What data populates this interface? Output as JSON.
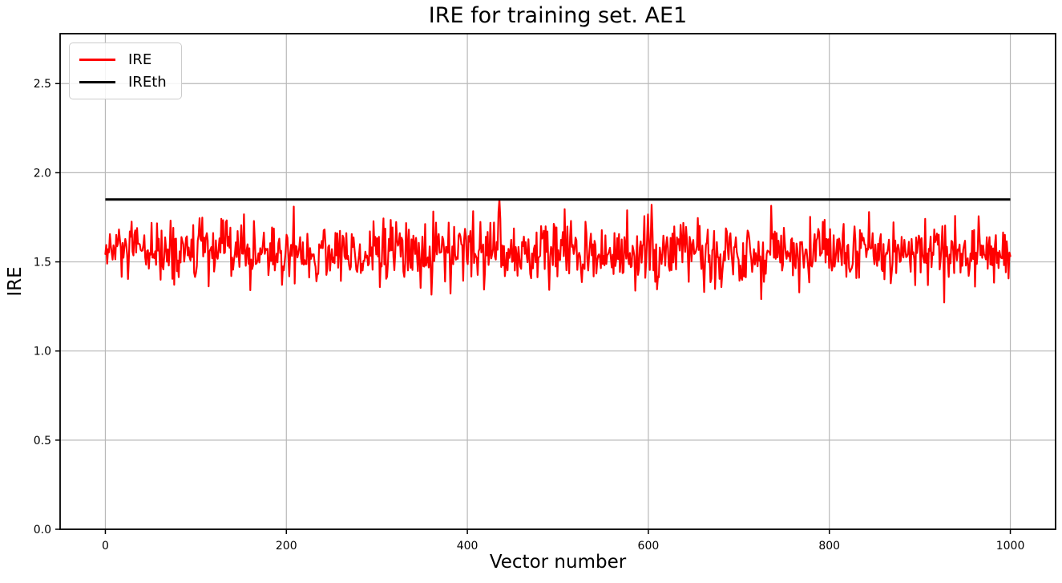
{
  "chart_data": {
    "type": "line",
    "title": "IRE for training set. AE1",
    "xlabel": "Vector number",
    "ylabel": "IRE",
    "xlim": [
      -50,
      1050
    ],
    "ylim": [
      0,
      2.78
    ],
    "x_tick_values": [
      0,
      200,
      400,
      600,
      800,
      1000
    ],
    "x_tick_labels": [
      "0",
      "200",
      "400",
      "600",
      "800",
      "1000"
    ],
    "y_tick_values": [
      0.0,
      0.5,
      1.0,
      1.5,
      2.0,
      2.5
    ],
    "y_tick_labels": [
      "0.0",
      "0.5",
      "1.0",
      "1.5",
      "2.0",
      "2.5"
    ],
    "grid": true,
    "grid_color": "#b8b8b8",
    "spine_color": "#000000",
    "legend_position": "upper-left",
    "series": [
      {
        "name": "IRE",
        "color": "#ff0000",
        "line_width": 2.2,
        "kind": "noisy",
        "n_points": 1000,
        "x_start": 0,
        "x_end": 1000,
        "mean": 1.55,
        "std": 0.09,
        "min": 1.24,
        "max": 1.82,
        "seed": 12345,
        "spike": {
          "index": 435,
          "values": [
            1.78,
            1.85,
            1.74
          ]
        }
      },
      {
        "name": "IREth",
        "color": "#000000",
        "line_width": 3,
        "kind": "constant",
        "value": 1.85,
        "x_start": 0,
        "x_end": 1000
      }
    ]
  }
}
